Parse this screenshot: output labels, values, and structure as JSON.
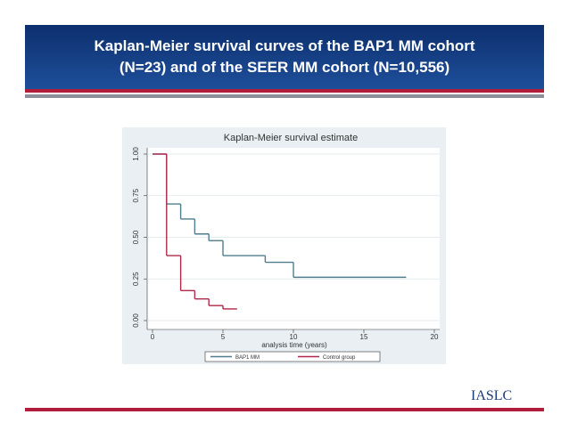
{
  "slide": {
    "title": [
      "Kaplan-Meier survival curves of the BAP1 MM cohort",
      "(N=23) and of the SEER MM cohort (N=10,556)"
    ],
    "logo": "IASLC"
  },
  "chart_data": {
    "type": "line",
    "step": "post",
    "title": "Kaplan-Meier survival estimate",
    "x_label": "analysis time (years)",
    "xlim": [
      0,
      20
    ],
    "xticks": [
      0,
      5,
      10,
      15,
      20
    ],
    "ylim": [
      0,
      1
    ],
    "yticks": [
      {
        "value": 0,
        "label": "0.00"
      },
      {
        "value": 0.25,
        "label": "0.25"
      },
      {
        "value": 0.5,
        "label": "0.50"
      },
      {
        "value": 0.75,
        "label": "0.75"
      },
      {
        "value": 1,
        "label": "1.00"
      }
    ],
    "grid": true,
    "legend": "bottom",
    "series": [
      {
        "name": "BAP1 MM",
        "color": "#4f7d8e",
        "x": [
          0,
          1,
          2,
          3,
          4,
          5,
          8,
          10,
          18
        ],
        "values": [
          1,
          0.7,
          0.61,
          0.52,
          0.48,
          0.39,
          0.35,
          0.26,
          0.26
        ]
      },
      {
        "name": "Control group",
        "color": "#b0284a",
        "x": [
          0,
          1,
          2,
          3,
          4,
          5,
          6
        ],
        "values": [
          1,
          0.39,
          0.18,
          0.13,
          0.09,
          0.07,
          0.07
        ]
      }
    ]
  }
}
